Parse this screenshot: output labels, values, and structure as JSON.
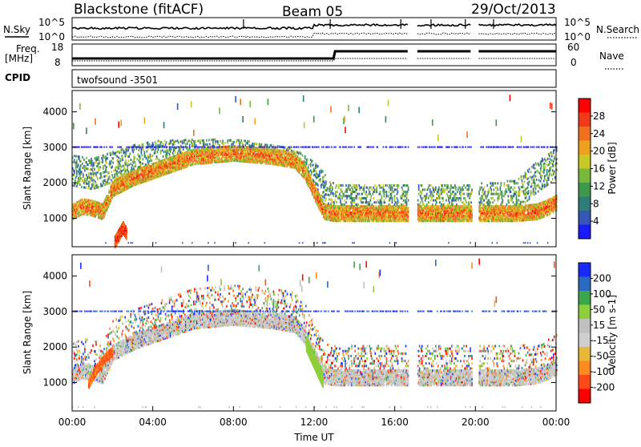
{
  "header": {
    "station": "Blackstone (fitACF)",
    "beam": "Beam 05",
    "date": "29/Oct/2013"
  },
  "top_panels": {
    "nsky_label": "N.Sky",
    "nsearch_label": "N.Search",
    "noise_ticks": [
      "10^5",
      "10^0"
    ],
    "noise_right_ticks": [
      "10^5",
      "10^0"
    ],
    "freq_label_line1": "Freq.",
    "freq_label_line2": "[MHz]",
    "freq_ticks": [
      "18",
      "8"
    ],
    "nave_ticks": [
      "60",
      "0"
    ],
    "nave_label": "Nave",
    "cpid_label": "CPID",
    "cpid_value": "twofsound -3501"
  },
  "x_axis": {
    "label": "Time UT",
    "ticks": [
      "00:00",
      "04:00",
      "08:00",
      "12:00",
      "16:00",
      "20:00",
      "00:00"
    ]
  },
  "colors": {
    "power_scale": [
      "#1a1aff",
      "#3557b5",
      "#2f7d78",
      "#3e9a4a",
      "#7ab83a",
      "#c8c826",
      "#f0a020",
      "#f07020",
      "#f03a18",
      "#ff0000"
    ],
    "velocity_scale": [
      "#ff0000",
      "#ff4a18",
      "#ff8a1e",
      "#e8b83a",
      "#cfcfcf",
      "#c0c0c0",
      "#8ccf3a",
      "#3aa84a",
      "#2a6ac0",
      "#1a2aff"
    ]
  },
  "chart_data": [
    {
      "type": "heatmap",
      "title": "Power",
      "xlabel": "Time UT",
      "ylabel": "Slant Range [km]",
      "x_range": [
        "00:00",
        "24:00"
      ],
      "ylim": [
        200,
        4600
      ],
      "y_ticks": [
        1000,
        2000,
        3000,
        4000
      ],
      "colorbar": {
        "label": "Power [dB]",
        "ticks": [
          4,
          8,
          12,
          16,
          20,
          24,
          28
        ],
        "range": [
          0,
          32
        ]
      },
      "layers": [
        {
          "name": "lower_echo_band",
          "hours": [
            0,
            0.5,
            1,
            1.5,
            2,
            3,
            4,
            6,
            8,
            10,
            11,
            11.5,
            12,
            12.5,
            13,
            14,
            16,
            18,
            20,
            22,
            23,
            23.5,
            24
          ],
          "range_km": [
            1150,
            1300,
            1250,
            1150,
            1800,
            2100,
            2300,
            2700,
            2800,
            2700,
            2600,
            2300,
            1700,
            1150,
            1100,
            1100,
            1100,
            1100,
            1100,
            1100,
            1150,
            1250,
            1400
          ],
          "value_db": 26
        },
        {
          "name": "mid_scatter_band",
          "hours": [
            0,
            1,
            2,
            3,
            4,
            6,
            8,
            10,
            11,
            12,
            13,
            16,
            18,
            20,
            22,
            23,
            24
          ],
          "range_km": [
            2400,
            2300,
            2500,
            2700,
            2800,
            2850,
            2850,
            2700,
            2600,
            2200,
            1600,
            1600,
            1600,
            1600,
            1700,
            2200,
            2600
          ],
          "value_db": 13
        },
        {
          "name": "near_range_patch",
          "hours": [
            2.1,
            2.3,
            2.5,
            2.7
          ],
          "range_km": [
            350,
            550,
            750,
            550
          ],
          "value_db": 30
        },
        {
          "name": "3000km_line",
          "hours": [
            0,
            24
          ],
          "range_km": [
            3000,
            3000
          ],
          "value_db": 6
        }
      ]
    },
    {
      "type": "heatmap",
      "title": "Velocity",
      "xlabel": "Time UT",
      "ylabel": "Slant Range [km]",
      "x_range": [
        "00:00",
        "24:00"
      ],
      "ylim": [
        200,
        4600
      ],
      "y_ticks": [
        1000,
        2000,
        3000,
        4000
      ],
      "colorbar": {
        "label": "Velocity [m s-1]",
        "ticks": [
          200,
          100,
          50,
          15,
          -15,
          -50,
          -100,
          -200
        ],
        "range": [
          -250,
          250
        ]
      },
      "layers": [
        {
          "name": "lower_echo_band",
          "hours": [
            0,
            0.5,
            1,
            1.5,
            2,
            3,
            4,
            6,
            8,
            10,
            11,
            11.5,
            12,
            12.5,
            13,
            14,
            16,
            18,
            20,
            22,
            23,
            23.5,
            24
          ],
          "range_km": [
            1150,
            1300,
            1250,
            1150,
            1800,
            2100,
            2300,
            2700,
            2800,
            2700,
            2600,
            2300,
            1700,
            1150,
            1100,
            1100,
            1100,
            1100,
            1100,
            1100,
            1150,
            1250,
            1400
          ],
          "value_ms": 0
        },
        {
          "name": "dawn_approach",
          "hours": [
            0.8,
            1.2,
            1.6,
            2
          ],
          "range_km": [
            1000,
            1400,
            1700,
            1900
          ],
          "value_ms": -60
        },
        {
          "name": "noon_descent",
          "hours": [
            11.6,
            12,
            12.4
          ],
          "range_km": [
            2100,
            1600,
            1100
          ],
          "value_ms": 30
        }
      ]
    }
  ]
}
